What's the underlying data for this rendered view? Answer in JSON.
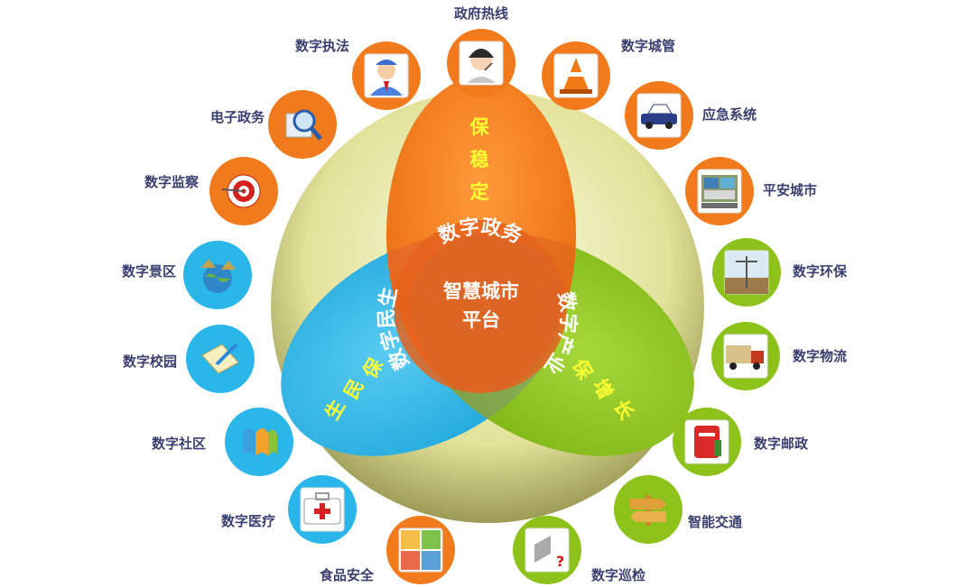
{
  "center": {
    "line1": "智慧城市",
    "line2": "平台"
  },
  "ring_labels": {
    "top": "数字政务",
    "left": "数字民生",
    "right": "数字产业"
  },
  "petal_labels": {
    "top": [
      "保",
      "稳",
      "定"
    ],
    "left": [
      "保",
      "民",
      "生"
    ],
    "right": [
      "保",
      "增",
      "长"
    ]
  },
  "colors": {
    "orange": "#f07a1c",
    "blue": "#2ab6e8",
    "green": "#8cc21a",
    "yellow_bg": "#e8e7a0",
    "label_text": "#3a3f6e"
  },
  "nodes": [
    {
      "label": "政府热线",
      "icon": "operator-headset-icon",
      "color": "orange"
    },
    {
      "label": "数字城管",
      "icon": "traffic-cone-icon",
      "color": "orange"
    },
    {
      "label": "应急系统",
      "icon": "police-car-icon",
      "color": "orange"
    },
    {
      "label": "平安城市",
      "icon": "surveillance-screen-icon",
      "color": "orange"
    },
    {
      "label": "数字环保",
      "icon": "weather-station-icon",
      "color": "green"
    },
    {
      "label": "数字物流",
      "icon": "truck-icon",
      "color": "green"
    },
    {
      "label": "数字邮政",
      "icon": "mailbox-icon",
      "color": "green"
    },
    {
      "label": "智能交通",
      "icon": "signpost-icon",
      "color": "green"
    },
    {
      "label": "数字巡检",
      "icon": "inspection-question-icon",
      "color": "green"
    },
    {
      "label": "食品安全",
      "icon": "food-safety-icon",
      "color": "orange"
    },
    {
      "label": "数字医疗",
      "icon": "first-aid-kit-icon",
      "color": "blue"
    },
    {
      "label": "数字社区",
      "icon": "community-logo-icon",
      "color": "blue"
    },
    {
      "label": "数字校园",
      "icon": "notepad-pencil-icon",
      "color": "blue"
    },
    {
      "label": "数字景区",
      "icon": "globe-landscape-icon",
      "color": "blue"
    },
    {
      "label": "数字监察",
      "icon": "target-dart-icon",
      "color": "orange"
    },
    {
      "label": "电子政务",
      "icon": "magnifier-icon",
      "color": "orange"
    },
    {
      "label": "数字执法",
      "icon": "officer-avatar-icon",
      "color": "orange"
    }
  ]
}
